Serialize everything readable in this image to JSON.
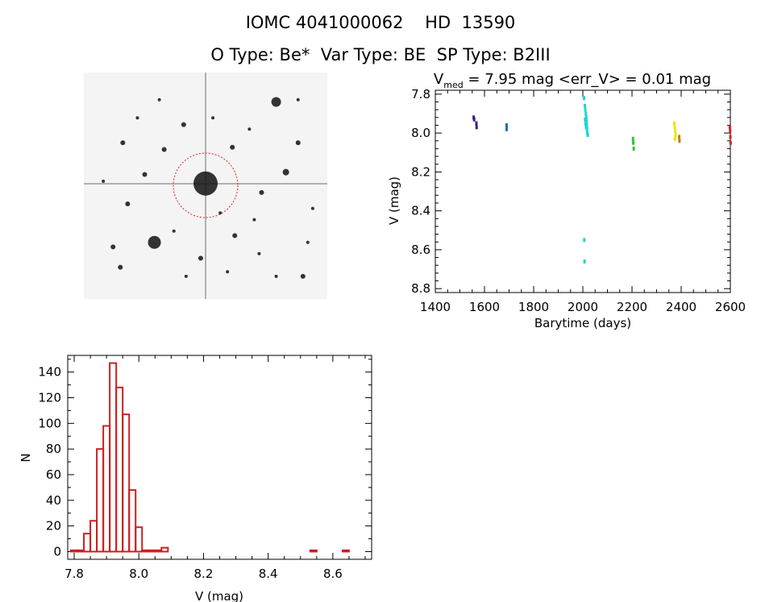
{
  "header": {
    "line1": "IOMC 4041000062    HD  13590",
    "line2": "O Type: Be*  Var Type: BE  SP Type: B2III"
  },
  "lightcurve": {
    "title_sym": "V",
    "title_sub": "med",
    "title_rest": " = 7.95 mag <err_V> = 0.01 mag"
  },
  "chart_data": [
    {
      "type": "scatter",
      "xlabel": "Barytime (days)",
      "ylabel": "V (mag)",
      "xlim": [
        1400,
        2600
      ],
      "ylim": [
        8.82,
        7.78
      ],
      "y_inverted": true,
      "xticks": [
        1400,
        1600,
        1800,
        2000,
        2200,
        2400,
        2600
      ],
      "xtick_labels": [
        "1400",
        "1600",
        "1800",
        "2000",
        "2200",
        "2400",
        "2600"
      ],
      "yticks": [
        7.8,
        8.0,
        8.2,
        8.4,
        8.6,
        8.8
      ],
      "ytick_labels": [
        "7.8",
        "8.0",
        "8.2",
        "8.4",
        "8.6",
        "8.8"
      ],
      "series": [
        {
          "color": "#3c1f8c",
          "points": [
            [
              1556,
              7.92
            ],
            [
              1558,
              7.93
            ],
            [
              1567,
              7.95
            ],
            [
              1568,
              7.97
            ]
          ]
        },
        {
          "color": "#1a6fb3",
          "points": [
            [
              1690,
              7.96
            ],
            [
              1690,
              7.98
            ]
          ]
        },
        {
          "color": "#19d8d0",
          "points": [
            [
              2005,
              7.82
            ],
            [
              2008,
              7.86
            ],
            [
              2010,
              7.88
            ],
            [
              2012,
              7.9
            ],
            [
              2014,
              7.92
            ],
            [
              2015,
              7.94
            ],
            [
              2016,
              7.96
            ],
            [
              2017,
              7.98
            ],
            [
              2018,
              8.0
            ],
            [
              2020,
              8.01
            ],
            [
              2011,
              7.95
            ],
            [
              2009,
              7.93
            ],
            [
              2013,
              7.97
            ],
            [
              2006,
              8.55
            ],
            [
              2007,
              8.66
            ]
          ]
        },
        {
          "color": "#2fc43a",
          "points": [
            [
              2204,
              8.03
            ],
            [
              2205,
              8.05
            ],
            [
              2207,
              8.08
            ]
          ]
        },
        {
          "color": "#e8e800",
          "points": [
            [
              2372,
              7.95
            ],
            [
              2374,
              7.97
            ],
            [
              2376,
              7.99
            ],
            [
              2377,
              8.01
            ],
            [
              2375,
              8.03
            ]
          ]
        },
        {
          "color": "#c07a16",
          "points": [
            [
              2392,
              8.02
            ],
            [
              2393,
              8.04
            ]
          ]
        },
        {
          "color": "#e02020",
          "points": [
            [
              2598,
              7.97
            ],
            [
              2599,
              7.99
            ],
            [
              2600,
              8.02
            ],
            [
              2601,
              8.05
            ]
          ]
        }
      ]
    },
    {
      "type": "bar",
      "xlabel": "V (mag)",
      "ylabel": "N",
      "color": "#cc1f1f",
      "xlim": [
        7.78,
        8.72
      ],
      "ylim": [
        -6,
        153
      ],
      "bin_width": 0.02,
      "bins": [
        7.8,
        7.82,
        7.84,
        7.86,
        7.88,
        7.9,
        7.92,
        7.94,
        7.96,
        7.98,
        8.0,
        8.02,
        8.04,
        8.06,
        8.08,
        8.1,
        8.12,
        8.14,
        8.16,
        8.18,
        8.2,
        8.22,
        8.24,
        8.26,
        8.28,
        8.3,
        8.32,
        8.34,
        8.36,
        8.38,
        8.4,
        8.42,
        8.44,
        8.46,
        8.48,
        8.5,
        8.52,
        8.54,
        8.56,
        8.58,
        8.6,
        8.62,
        8.64
      ],
      "values": [
        1,
        1,
        14,
        24,
        80,
        98,
        147,
        128,
        107,
        48,
        19,
        1,
        1,
        1,
        3,
        0,
        0,
        0,
        0,
        0,
        0,
        0,
        0,
        0,
        0,
        0,
        0,
        0,
        0,
        0,
        0,
        0,
        0,
        0,
        0,
        0,
        0,
        1,
        0,
        0,
        0,
        0,
        1
      ],
      "xticks": [
        7.8,
        8.0,
        8.2,
        8.4,
        8.6
      ],
      "xtick_labels": [
        "7.8",
        "8.0",
        "8.2",
        "8.4",
        "8.6"
      ],
      "yticks": [
        0,
        20,
        40,
        60,
        80,
        100,
        120,
        140
      ],
      "ytick_labels": [
        "0",
        "20",
        "40",
        "60",
        "80",
        "100",
        "120",
        "140"
      ]
    }
  ],
  "thumbnail": {
    "colors": {
      "bg": "#f4f4f4",
      "star": "#111111",
      "circle": "#dd2222"
    },
    "stars": [
      [
        0.5,
        0.49,
        15
      ],
      [
        0.29,
        0.75,
        8
      ],
      [
        0.79,
        0.13,
        6
      ],
      [
        0.9,
        0.9,
        3
      ],
      [
        0.16,
        0.31,
        3
      ],
      [
        0.41,
        0.23,
        3
      ],
      [
        0.33,
        0.34,
        3
      ],
      [
        0.83,
        0.44,
        4
      ],
      [
        0.61,
        0.33,
        3
      ],
      [
        0.68,
        0.25,
        2
      ],
      [
        0.73,
        0.53,
        3
      ],
      [
        0.18,
        0.58,
        3
      ],
      [
        0.12,
        0.77,
        3
      ],
      [
        0.62,
        0.72,
        3
      ],
      [
        0.88,
        0.31,
        3
      ],
      [
        0.94,
        0.6,
        2
      ],
      [
        0.48,
        0.82,
        3
      ],
      [
        0.72,
        0.8,
        2
      ],
      [
        0.53,
        0.2,
        2
      ],
      [
        0.37,
        0.7,
        2
      ],
      [
        0.56,
        0.62,
        2
      ],
      [
        0.25,
        0.45,
        3
      ],
      [
        0.15,
        0.86,
        3
      ],
      [
        0.7,
        0.65,
        2
      ],
      [
        0.88,
        0.12,
        2
      ],
      [
        0.31,
        0.12,
        2
      ],
      [
        0.42,
        0.9,
        2
      ],
      [
        0.79,
        0.9,
        2
      ],
      [
        0.59,
        0.88,
        2
      ],
      [
        0.08,
        0.48,
        2
      ],
      [
        0.22,
        0.2,
        2
      ],
      [
        0.92,
        0.75,
        2
      ]
    ]
  }
}
